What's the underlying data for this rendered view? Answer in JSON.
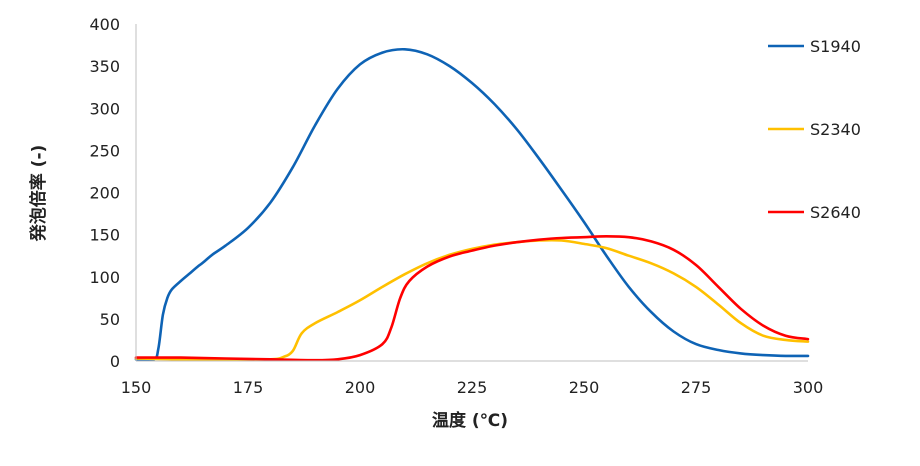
{
  "chart_data": {
    "type": "line",
    "xlabel": "温度 (℃)",
    "ylabel": "発泡倍率 (-)",
    "xlim": [
      150,
      300
    ],
    "ylim": [
      0,
      400
    ],
    "xticks": [
      150,
      175,
      200,
      225,
      250,
      275,
      300
    ],
    "yticks": [
      0,
      50,
      100,
      150,
      200,
      250,
      300,
      350,
      400
    ],
    "grid": false,
    "legend_position": "right",
    "series": [
      {
        "name": "S1940",
        "color": "#0E63B5",
        "points": [
          [
            150,
            2
          ],
          [
            154,
            2
          ],
          [
            155,
            15
          ],
          [
            156,
            55
          ],
          [
            157,
            75
          ],
          [
            158,
            85
          ],
          [
            160,
            95
          ],
          [
            162,
            104
          ],
          [
            164,
            113
          ],
          [
            165,
            117
          ],
          [
            167,
            126
          ],
          [
            170,
            137
          ],
          [
            175,
            158
          ],
          [
            180,
            188
          ],
          [
            185,
            230
          ],
          [
            190,
            280
          ],
          [
            195,
            323
          ],
          [
            200,
            352
          ],
          [
            205,
            366
          ],
          [
            210,
            370
          ],
          [
            215,
            364
          ],
          [
            220,
            350
          ],
          [
            225,
            330
          ],
          [
            230,
            305
          ],
          [
            235,
            275
          ],
          [
            240,
            240
          ],
          [
            245,
            203
          ],
          [
            250,
            165
          ],
          [
            255,
            125
          ],
          [
            260,
            88
          ],
          [
            265,
            58
          ],
          [
            270,
            35
          ],
          [
            275,
            20
          ],
          [
            280,
            13
          ],
          [
            285,
            9
          ],
          [
            290,
            7
          ],
          [
            295,
            6
          ],
          [
            300,
            6
          ]
        ]
      },
      {
        "name": "S2340",
        "color": "#FFC000",
        "points": [
          [
            150,
            3
          ],
          [
            160,
            2
          ],
          [
            170,
            2
          ],
          [
            180,
            2
          ],
          [
            183,
            5
          ],
          [
            185,
            12
          ],
          [
            187,
            33
          ],
          [
            190,
            45
          ],
          [
            195,
            58
          ],
          [
            200,
            72
          ],
          [
            205,
            88
          ],
          [
            210,
            103
          ],
          [
            215,
            116
          ],
          [
            220,
            126
          ],
          [
            225,
            133
          ],
          [
            230,
            138
          ],
          [
            235,
            141
          ],
          [
            240,
            143
          ],
          [
            245,
            143
          ],
          [
            250,
            139
          ],
          [
            255,
            134
          ],
          [
            260,
            125
          ],
          [
            265,
            116
          ],
          [
            270,
            104
          ],
          [
            275,
            88
          ],
          [
            280,
            67
          ],
          [
            285,
            45
          ],
          [
            290,
            30
          ],
          [
            295,
            25
          ],
          [
            300,
            23
          ]
        ]
      },
      {
        "name": "S2640",
        "color": "#FF0000",
        "points": [
          [
            150,
            4
          ],
          [
            160,
            4
          ],
          [
            170,
            3
          ],
          [
            180,
            2
          ],
          [
            190,
            1
          ],
          [
            195,
            2
          ],
          [
            200,
            7
          ],
          [
            205,
            20
          ],
          [
            207,
            40
          ],
          [
            209,
            75
          ],
          [
            211,
            95
          ],
          [
            215,
            112
          ],
          [
            220,
            124
          ],
          [
            225,
            131
          ],
          [
            230,
            137
          ],
          [
            235,
            141
          ],
          [
            240,
            144
          ],
          [
            245,
            146
          ],
          [
            250,
            147
          ],
          [
            255,
            148
          ],
          [
            260,
            147
          ],
          [
            265,
            142
          ],
          [
            270,
            132
          ],
          [
            275,
            114
          ],
          [
            280,
            88
          ],
          [
            285,
            62
          ],
          [
            290,
            42
          ],
          [
            295,
            30
          ],
          [
            300,
            26
          ]
        ]
      }
    ]
  }
}
